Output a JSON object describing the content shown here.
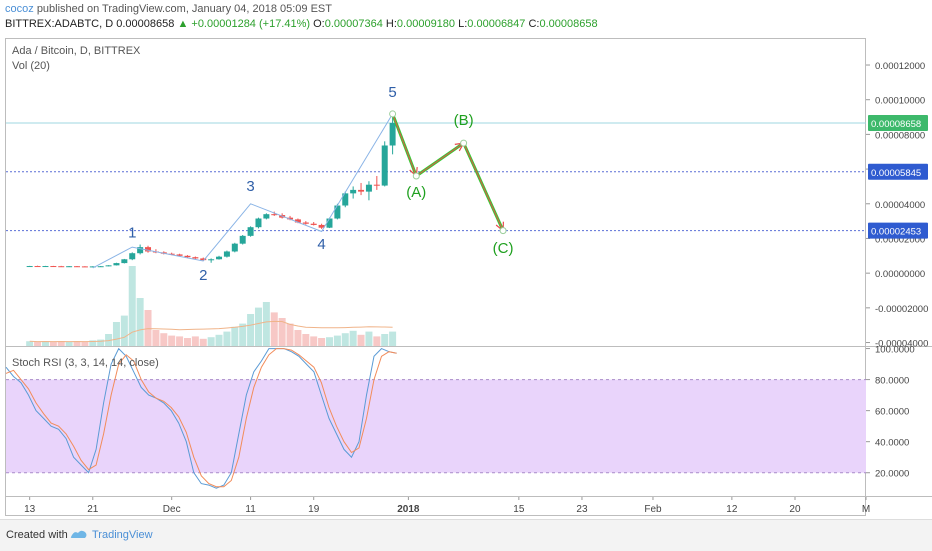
{
  "header": {
    "user": "cocoz",
    "published": "published on TradingView.com, January 04, 2018 05:09 EST",
    "symbol": "BITTREX:ADABTC, D",
    "price": "0.00008658",
    "change": "+0.00001284 (+17.41%)",
    "open_label": "O:",
    "open": "0.00007364",
    "high_label": "H:",
    "high": "0.00009180",
    "low_label": "L:",
    "low": "0.00006847",
    "close_label": "C:",
    "close": "0.00008658"
  },
  "main_legend": {
    "title": "Ada / Bitcoin, D, BITTREX",
    "volume": "Vol (20)"
  },
  "rsi_legend": "Stoch RSI (3, 3, 14, 14, close)",
  "footer": {
    "created": "Created with",
    "brand": "TradingView"
  },
  "colors": {
    "up": "#26a69a",
    "down": "#ef5350",
    "wave_blue": "#8ab4e6",
    "wave_green": "#35cc35",
    "arrow_red": "#e84c4c",
    "k_line": "#5b9bd5",
    "d_line": "#f28c5a",
    "rsi_band": "#e9d4fb",
    "price_tag": "#3db96b",
    "level_tag": "#2f5bd0"
  },
  "chart_data": [
    {
      "type": "candlestick",
      "title": "Ada / Bitcoin, D, BITTREX",
      "y_ticks": [
        "0.00012000",
        "0.00010000",
        "0.00008000",
        "0.00006000",
        "0.00004000",
        "0.00002000",
        "0.00000000",
        "-0.00002000",
        "-0.00004000"
      ],
      "ylim": [
        -4.2e-05,
        0.000135
      ],
      "x_ticks": [
        "13",
        "21",
        "Dec",
        "11",
        "19",
        "2018",
        "15",
        "23",
        "Feb",
        "12",
        "20",
        "M"
      ],
      "x_tick_days": [
        0,
        8,
        18,
        28,
        36,
        48,
        62,
        70,
        79,
        89,
        97,
        106
      ],
      "x_range_days": [
        -3,
        106
      ],
      "candles": [
        [
          0,
          4e-06,
          4.2e-06,
          3.9e-06,
          4.1e-06
        ],
        [
          1,
          4.1e-06,
          4.3e-06,
          4e-06,
          4e-06
        ],
        [
          2,
          4e-06,
          4.2e-06,
          3.9e-06,
          4.1e-06
        ],
        [
          3,
          4.1e-06,
          4.2e-06,
          3.9e-06,
          4e-06
        ],
        [
          4,
          4e-06,
          4.2e-06,
          3.9e-06,
          3.9e-06
        ],
        [
          5,
          3.9e-06,
          4.1e-06,
          3.8e-06,
          4e-06
        ],
        [
          6,
          4e-06,
          4.1e-06,
          3.8e-06,
          3.9e-06
        ],
        [
          7,
          3.9e-06,
          4e-06,
          3.7e-06,
          3.8e-06
        ],
        [
          8,
          3.8e-06,
          4e-06,
          3.7e-06,
          3.9e-06
        ],
        [
          9,
          3.9e-06,
          4.1e-06,
          3.8e-06,
          4e-06
        ],
        [
          10,
          4e-06,
          4.6e-06,
          3.9e-06,
          4.5e-06
        ],
        [
          11,
          4.5e-06,
          6e-06,
          4.4e-06,
          5.8e-06
        ],
        [
          12,
          5.8e-06,
          8.2e-06,
          5.6e-06,
          8e-06
        ],
        [
          13,
          8e-06,
          1.2e-05,
          7.5e-06,
          1.15e-05
        ],
        [
          14,
          1.15e-05,
          1.65e-05,
          1.08e-05,
          1.5e-05
        ],
        [
          15,
          1.5e-05,
          1.58e-05,
          1.18e-05,
          1.25e-05
        ],
        [
          16,
          1.25e-05,
          1.38e-05,
          1.15e-05,
          1.2e-05
        ],
        [
          17,
          1.2e-05,
          1.26e-05,
          1.08e-05,
          1.12e-05
        ],
        [
          18,
          1.12e-05,
          1.18e-05,
          1.04e-05,
          1.08e-05
        ],
        [
          19,
          1.08e-05,
          1.12e-05,
          9.8e-06,
          1e-05
        ],
        [
          20,
          1e-05,
          1.04e-05,
          9e-06,
          9.2e-06
        ],
        [
          21,
          9.2e-06,
          9.6e-06,
          8.2e-06,
          8.5e-06
        ],
        [
          22,
          8.5e-06,
          9e-06,
          7e-06,
          7.5e-06
        ],
        [
          23,
          7.5e-06,
          8.5e-06,
          6e-06,
          8e-06
        ],
        [
          24,
          8e-06,
          1e-05,
          7.8e-06,
          9.5e-06
        ],
        [
          25,
          9.5e-06,
          1.3e-05,
          9e-06,
          1.25e-05
        ],
        [
          26,
          1.25e-05,
          1.75e-05,
          1.2e-05,
          1.7e-05
        ],
        [
          27,
          1.7e-05,
          2.2e-05,
          1.65e-05,
          2.15e-05
        ],
        [
          28,
          2.15e-05,
          2.7e-05,
          2.1e-05,
          2.65e-05
        ],
        [
          29,
          2.65e-05,
          3.2e-05,
          2.58e-05,
          3.15e-05
        ],
        [
          30,
          3.15e-05,
          3.45e-05,
          3.1e-05,
          3.4e-05
        ],
        [
          31,
          3.4e-05,
          3.55e-05,
          3.3e-05,
          3.35e-05
        ],
        [
          32,
          3.35e-05,
          3.45e-05,
          3.15e-05,
          3.2e-05
        ],
        [
          33,
          3.2e-05,
          3.3e-05,
          3.05e-05,
          3.1e-05
        ],
        [
          34,
          3.1e-05,
          3.15e-05,
          2.88e-05,
          2.92e-05
        ],
        [
          35,
          2.92e-05,
          3e-05,
          2.8e-05,
          2.85e-05
        ],
        [
          36,
          2.85e-05,
          2.95e-05,
          2.75e-05,
          2.78e-05
        ],
        [
          37,
          2.78e-05,
          2.85e-05,
          2.55e-05,
          2.62e-05
        ],
        [
          38,
          2.62e-05,
          3.2e-05,
          2.6e-05,
          3.15e-05
        ],
        [
          39,
          3.15e-05,
          4e-05,
          3.1e-05,
          3.9e-05
        ],
        [
          40,
          3.9e-05,
          4.7e-05,
          3.8e-05,
          4.6e-05
        ],
        [
          41,
          4.6e-05,
          5e-05,
          4.3e-05,
          4.8e-05
        ],
        [
          42,
          4.8e-05,
          5.2e-05,
          4.5e-05,
          4.7e-05
        ],
        [
          43,
          4.7e-05,
          5.3e-05,
          4.2e-05,
          5.1e-05
        ],
        [
          44,
          5.1e-05,
          5.6e-05,
          4.8e-05,
          5.05e-05
        ],
        [
          45,
          5.05e-05,
          7.6e-05,
          5e-05,
          7.36e-05
        ],
        [
          46,
          7.36e-05,
          9.18e-05,
          6.85e-05,
          8.66e-05
        ]
      ],
      "volume": [
        [
          0,
          0.6
        ],
        [
          1,
          0.5
        ],
        [
          2,
          0.6
        ],
        [
          3,
          0.5
        ],
        [
          4,
          0.6
        ],
        [
          5,
          0.5
        ],
        [
          6,
          0.6
        ],
        [
          7,
          0.5
        ],
        [
          8,
          0.7
        ],
        [
          9,
          0.8
        ],
        [
          10,
          1.5
        ],
        [
          11,
          3.0
        ],
        [
          12,
          3.8
        ],
        [
          13,
          10.0
        ],
        [
          14,
          6.0
        ],
        [
          15,
          4.5
        ],
        [
          16,
          2.0
        ],
        [
          17,
          1.6
        ],
        [
          18,
          1.3
        ],
        [
          19,
          1.2
        ],
        [
          20,
          1.0
        ],
        [
          21,
          1.2
        ],
        [
          22,
          0.9
        ],
        [
          23,
          1.1
        ],
        [
          24,
          1.4
        ],
        [
          25,
          1.8
        ],
        [
          26,
          2.4
        ],
        [
          27,
          2.8
        ],
        [
          28,
          4.0
        ],
        [
          29,
          4.8
        ],
        [
          30,
          5.5
        ],
        [
          31,
          4.2
        ],
        [
          32,
          3.5
        ],
        [
          33,
          2.8
        ],
        [
          34,
          2.0
        ],
        [
          35,
          1.5
        ],
        [
          36,
          1.2
        ],
        [
          37,
          1.0
        ],
        [
          38,
          1.1
        ],
        [
          39,
          1.3
        ],
        [
          40,
          1.6
        ],
        [
          41,
          1.9
        ],
        [
          42,
          1.4
        ],
        [
          43,
          1.8
        ],
        [
          44,
          1.2
        ],
        [
          45,
          1.5
        ],
        [
          46,
          1.8
        ]
      ],
      "horizontal_levels": [
        8.658e-05,
        5.845e-05,
        2.453e-05
      ],
      "price_tags": [
        "0.00008658",
        "0.00005845",
        "0.00002453"
      ],
      "wave_labels": [
        {
          "text": "1",
          "day": 13,
          "y": 2.05e-05
        },
        {
          "text": "2",
          "day": 22,
          "y": -4e-06
        },
        {
          "text": "3",
          "day": 28,
          "y": 4.75e-05
        },
        {
          "text": "4",
          "day": 37,
          "y": 1.4e-05
        },
        {
          "text": "5",
          "day": 46,
          "y": 0.0001015
        },
        {
          "text": "(A)",
          "day": 49,
          "y": 4.4e-05
        },
        {
          "text": "(B)",
          "day": 55,
          "y": 8.55e-05
        },
        {
          "text": "(C)",
          "day": 60,
          "y": 1.15e-05
        }
      ],
      "wave_path_blue": [
        [
          8,
          3e-06
        ],
        [
          13,
          1.5e-05
        ],
        [
          22,
          7e-06
        ],
        [
          28,
          4e-05
        ],
        [
          37,
          2.4e-05
        ],
        [
          46,
          9.18e-05
        ]
      ],
      "wave_path_green": [
        [
          46,
          9.18e-05
        ],
        [
          49,
          5.6e-05
        ],
        [
          55,
          7.5e-05
        ],
        [
          60,
          2.45e-05
        ]
      ]
    },
    {
      "type": "line",
      "title": "Stoch RSI (3, 3, 14, 14, close)",
      "y_ticks": [
        "100.0000",
        "80.0000",
        "60.0000",
        "40.0000",
        "20.0000"
      ],
      "ylim": [
        5,
        101
      ],
      "band": [
        20,
        80
      ],
      "series": [
        {
          "values": [
            88,
            82,
            78,
            70,
            60,
            55,
            50,
            48,
            42,
            30,
            25,
            20,
            35,
            65,
            90,
            100,
            95,
            85,
            75,
            70,
            68,
            65,
            60,
            52,
            40,
            20,
            13,
            12,
            10,
            12,
            20,
            45,
            70,
            85,
            92,
            100,
            100,
            100,
            98,
            95,
            90,
            85,
            70,
            55,
            45,
            35,
            30,
            40,
            70,
            95,
            100,
            98,
            97
          ]
        },
        {
          "values": [
            84,
            86,
            80,
            74,
            65,
            58,
            52,
            50,
            45,
            37,
            28,
            22,
            25,
            45,
            70,
            90,
            96,
            92,
            80,
            72,
            68,
            66,
            62,
            56,
            46,
            30,
            18,
            13,
            11,
            11,
            15,
            30,
            55,
            75,
            88,
            96,
            100,
            100,
            99,
            96,
            92,
            88,
            78,
            62,
            50,
            40,
            33,
            36,
            55,
            80,
            95,
            98,
            97
          ]
        }
      ]
    }
  ]
}
